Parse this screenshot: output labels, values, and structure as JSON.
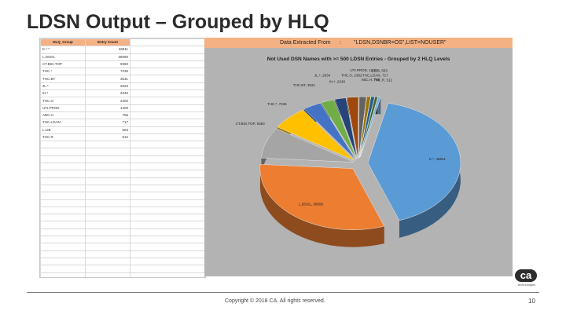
{
  "slide": {
    "title": "LDSN Output – Grouped by HLQ",
    "copyright": "Copyright © 2018 CA. All rights reserved.",
    "page_number": "10",
    "logo_mark": "ca",
    "logo_word": "technologies"
  },
  "spreadsheet": {
    "columns": [
      "HLQ_Group",
      "Entry Count"
    ],
    "rows": [
      [
        "K.*.*",
        "46811"
      ],
      [
        "L.DSOL",
        "36090"
      ],
      [
        "CT.BIG.TOP",
        "9350"
      ],
      [
        "THC.*",
        "7236"
      ],
      [
        "THC.BT",
        "3631"
      ],
      [
        "JL.*",
        "2634"
      ],
      [
        "IH.*",
        "2240"
      ],
      [
        "THC.O",
        "2302"
      ],
      [
        "UTI.PROD",
        "1400"
      ],
      [
        "ABC.H",
        "755"
      ],
      [
        "THC.LOAN",
        "717"
      ],
      [
        "L.LIB",
        "553"
      ],
      [
        "THC.R",
        "512"
      ]
    ]
  },
  "extract_header": {
    "label": "Data Extracted From",
    "colon": ":",
    "value": "\"LDSN,DSNBR=OS\",LIST=NOUSER\""
  },
  "chart_data": {
    "type": "pie",
    "title": "Not Used DSN Names with >= 500 LDSN Entries - Grouped by 2 HLQ Levels",
    "slices": [
      {
        "label": "K.*, 46811",
        "value": 46811,
        "color": "#5b9bd5"
      },
      {
        "label": "L.DSOL, 36090",
        "value": 36090,
        "color": "#ed7d31"
      },
      {
        "label": "CT.BIG.TOP, 9350",
        "value": 9350,
        "color": "#a5a5a5"
      },
      {
        "label": "THC.*, 7236",
        "value": 7236,
        "color": "#ffc000"
      },
      {
        "label": "THC.BT, 3631",
        "value": 3631,
        "color": "#4472c4"
      },
      {
        "label": "JL.*, 2634",
        "value": 2634,
        "color": "#70ad47"
      },
      {
        "label": "IH.*, 2240",
        "value": 2240,
        "color": "#264478"
      },
      {
        "label": "THC.O, 2302",
        "value": 2302,
        "color": "#9e480e"
      },
      {
        "label": "UTI.PROD, 1400",
        "value": 1400,
        "color": "#636363"
      },
      {
        "label": "ABC.H, 755",
        "value": 755,
        "color": "#997300"
      },
      {
        "label": "THC.LOAN, 717",
        "value": 717,
        "color": "#255e91"
      },
      {
        "label": "L.LIB, 553",
        "value": 553,
        "color": "#43682b"
      },
      {
        "label": "THC.R, 512",
        "value": 512,
        "color": "#7cafdd"
      }
    ]
  }
}
